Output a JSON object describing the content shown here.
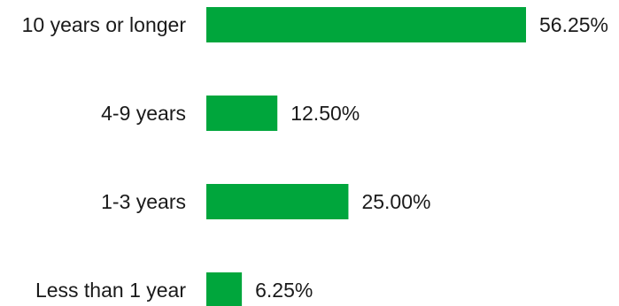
{
  "chart_data": {
    "type": "bar",
    "orientation": "horizontal",
    "categories": [
      "10 years or longer",
      "4-9 years",
      "1-3 years",
      "Less than 1 year"
    ],
    "values": [
      56.25,
      12.5,
      25.0,
      6.25
    ],
    "value_labels": [
      "56.25%",
      "12.50%",
      "25.00%",
      "6.25%"
    ],
    "bar_color": "#00a63c",
    "xlim": [
      0,
      56.25
    ],
    "grid": false,
    "legend": "none"
  }
}
